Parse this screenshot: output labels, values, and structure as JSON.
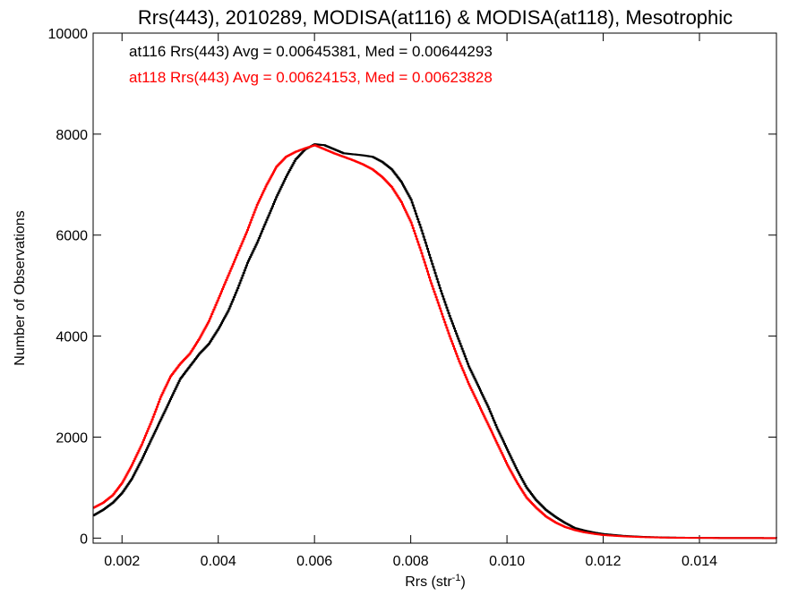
{
  "chart_data": {
    "type": "line",
    "title": "Rrs(443), 2010289, MODISA(at116) & MODISA(at118), Mesotrophic",
    "xlabel": "Rrs (str",
    "xlabel_sup": "-1",
    "xlabel_close": ")",
    "ylabel": "Number of Observations",
    "xlim": [
      0.0014,
      0.0156
    ],
    "ylim": [
      -100,
      10000
    ],
    "x_ticks": [
      0.002,
      0.004,
      0.006,
      0.008,
      0.01,
      0.012,
      0.014
    ],
    "x_tick_labels": [
      "0.002",
      "0.004",
      "0.006",
      "0.008",
      "0.010",
      "0.012",
      "0.014"
    ],
    "y_ticks": [
      0,
      2000,
      4000,
      6000,
      8000,
      10000
    ],
    "y_tick_labels": [
      "0",
      "2000",
      "4000",
      "6000",
      "8000",
      "10000"
    ],
    "grid": false,
    "legend_position": "top-left",
    "series": [
      {
        "name": "at116",
        "color": "#000000",
        "annotation": "at116 Rrs(443) Avg = 0.00645381, Med = 0.00644293",
        "points": [
          [
            0.0014,
            450
          ],
          [
            0.0016,
            560
          ],
          [
            0.0018,
            700
          ],
          [
            0.002,
            900
          ],
          [
            0.0022,
            1180
          ],
          [
            0.0024,
            1550
          ],
          [
            0.0026,
            1950
          ],
          [
            0.0028,
            2350
          ],
          [
            0.003,
            2750
          ],
          [
            0.0032,
            3150
          ],
          [
            0.0034,
            3400
          ],
          [
            0.0036,
            3650
          ],
          [
            0.0038,
            3850
          ],
          [
            0.004,
            4150
          ],
          [
            0.0042,
            4500
          ],
          [
            0.0044,
            4950
          ],
          [
            0.0046,
            5450
          ],
          [
            0.0048,
            5850
          ],
          [
            0.005,
            6300
          ],
          [
            0.0052,
            6750
          ],
          [
            0.0054,
            7150
          ],
          [
            0.0056,
            7500
          ],
          [
            0.0058,
            7700
          ],
          [
            0.006,
            7800
          ],
          [
            0.0062,
            7780
          ],
          [
            0.0064,
            7700
          ],
          [
            0.0066,
            7620
          ],
          [
            0.0068,
            7600
          ],
          [
            0.007,
            7580
          ],
          [
            0.0072,
            7550
          ],
          [
            0.0074,
            7450
          ],
          [
            0.0076,
            7300
          ],
          [
            0.0078,
            7050
          ],
          [
            0.008,
            6700
          ],
          [
            0.0082,
            6150
          ],
          [
            0.0084,
            5550
          ],
          [
            0.0086,
            4950
          ],
          [
            0.0088,
            4400
          ],
          [
            0.009,
            3900
          ],
          [
            0.0092,
            3400
          ],
          [
            0.0094,
            3000
          ],
          [
            0.0096,
            2600
          ],
          [
            0.0098,
            2150
          ],
          [
            0.01,
            1750
          ],
          [
            0.0102,
            1350
          ],
          [
            0.0104,
            1000
          ],
          [
            0.0106,
            750
          ],
          [
            0.0108,
            560
          ],
          [
            0.011,
            420
          ],
          [
            0.0112,
            300
          ],
          [
            0.0114,
            200
          ],
          [
            0.0116,
            150
          ],
          [
            0.0118,
            110
          ],
          [
            0.012,
            80
          ],
          [
            0.0124,
            45
          ],
          [
            0.0128,
            25
          ],
          [
            0.0132,
            14
          ],
          [
            0.0136,
            8
          ],
          [
            0.014,
            5
          ],
          [
            0.0146,
            2
          ],
          [
            0.0152,
            1
          ],
          [
            0.0156,
            0
          ]
        ]
      },
      {
        "name": "at118",
        "color": "#ff0000",
        "annotation": "at118 Rrs(443) Avg = 0.00624153, Med = 0.00623828",
        "points": [
          [
            0.0014,
            600
          ],
          [
            0.0016,
            700
          ],
          [
            0.0018,
            850
          ],
          [
            0.002,
            1100
          ],
          [
            0.0022,
            1450
          ],
          [
            0.0024,
            1850
          ],
          [
            0.0026,
            2300
          ],
          [
            0.0028,
            2800
          ],
          [
            0.003,
            3200
          ],
          [
            0.0032,
            3450
          ],
          [
            0.0034,
            3650
          ],
          [
            0.0036,
            3950
          ],
          [
            0.0038,
            4300
          ],
          [
            0.004,
            4750
          ],
          [
            0.0042,
            5200
          ],
          [
            0.0044,
            5650
          ],
          [
            0.0046,
            6100
          ],
          [
            0.0048,
            6600
          ],
          [
            0.005,
            7000
          ],
          [
            0.0052,
            7350
          ],
          [
            0.0054,
            7550
          ],
          [
            0.0056,
            7650
          ],
          [
            0.0058,
            7720
          ],
          [
            0.006,
            7780
          ],
          [
            0.0062,
            7700
          ],
          [
            0.0064,
            7620
          ],
          [
            0.0066,
            7550
          ],
          [
            0.0068,
            7480
          ],
          [
            0.007,
            7400
          ],
          [
            0.0072,
            7300
          ],
          [
            0.0074,
            7150
          ],
          [
            0.0076,
            6950
          ],
          [
            0.0078,
            6650
          ],
          [
            0.008,
            6250
          ],
          [
            0.0082,
            5700
          ],
          [
            0.0084,
            5100
          ],
          [
            0.0086,
            4550
          ],
          [
            0.0088,
            4000
          ],
          [
            0.009,
            3500
          ],
          [
            0.0092,
            3050
          ],
          [
            0.0094,
            2650
          ],
          [
            0.0096,
            2250
          ],
          [
            0.0098,
            1850
          ],
          [
            0.01,
            1450
          ],
          [
            0.0102,
            1100
          ],
          [
            0.0104,
            800
          ],
          [
            0.0106,
            600
          ],
          [
            0.0108,
            430
          ],
          [
            0.011,
            310
          ],
          [
            0.0112,
            220
          ],
          [
            0.0114,
            160
          ],
          [
            0.0116,
            115
          ],
          [
            0.0118,
            85
          ],
          [
            0.012,
            60
          ],
          [
            0.0124,
            35
          ],
          [
            0.0128,
            20
          ],
          [
            0.0132,
            11
          ],
          [
            0.0136,
            6
          ],
          [
            0.014,
            4
          ],
          [
            0.0146,
            2
          ],
          [
            0.0152,
            1
          ],
          [
            0.0156,
            0
          ]
        ]
      }
    ]
  }
}
